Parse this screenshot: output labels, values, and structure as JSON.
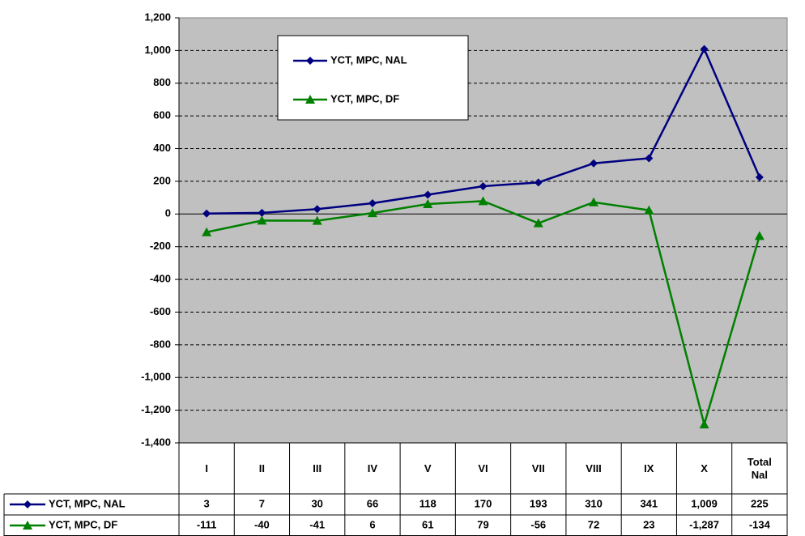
{
  "chart_data": {
    "type": "line",
    "categories": [
      "I",
      "II",
      "III",
      "IV",
      "V",
      "VI",
      "VII",
      "VIII",
      "IX",
      "X",
      "Total Nal"
    ],
    "series": [
      {
        "name": "YCT, MPC, NAL",
        "color": "#000080",
        "marker": "diamond",
        "values": [
          3,
          7,
          30,
          66,
          118,
          170,
          193,
          310,
          341,
          1009,
          225
        ],
        "value_labels": [
          "3",
          "7",
          "30",
          "66",
          "118",
          "170",
          "193",
          "310",
          "341",
          "1,009",
          "225"
        ]
      },
      {
        "name": "YCT, MPC, DF",
        "color": "#008000",
        "marker": "triangle",
        "values": [
          -111,
          -40,
          -41,
          6,
          61,
          79,
          -56,
          72,
          23,
          -1287,
          -134
        ],
        "value_labels": [
          "-111",
          "-40",
          "-41",
          "6",
          "61",
          "79",
          "-56",
          "72",
          "23",
          "-1,287",
          "-134"
        ]
      }
    ],
    "ylim": [
      -1400,
      1200
    ],
    "yticks": [
      {
        "value": -1400,
        "label": "-1,400"
      },
      {
        "value": -1200,
        "label": "-1,200"
      },
      {
        "value": -1000,
        "label": "-1,000"
      },
      -800,
      -600,
      -400,
      -200,
      0,
      200,
      400,
      600,
      800,
      {
        "value": 1000,
        "label": "1,000"
      },
      {
        "value": 1200,
        "label": "1,200"
      }
    ],
    "grid": true,
    "data_table": true
  }
}
